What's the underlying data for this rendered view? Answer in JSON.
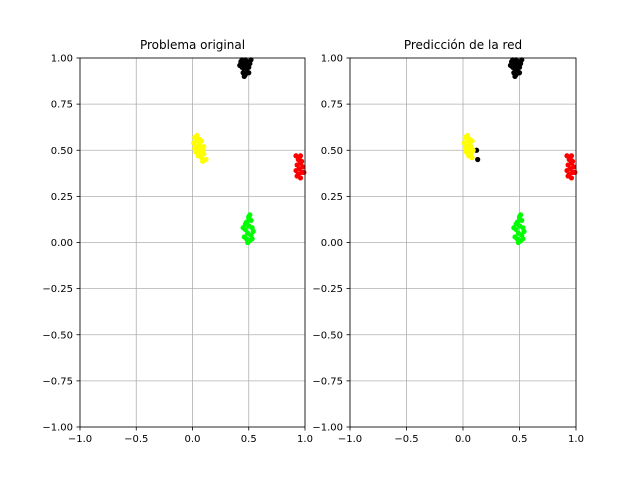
{
  "chart_data": [
    {
      "type": "scatter",
      "title": "Problema original",
      "xlim": [
        -1,
        1
      ],
      "ylim": [
        -1,
        1
      ],
      "xticks": [
        "−1.0",
        "−0.5",
        "0.0",
        "0.5",
        "1.0"
      ],
      "yticks": [
        "−1.00",
        "−0.75",
        "−0.50",
        "−0.25",
        "0.00",
        "0.25",
        "0.50",
        "0.75",
        "1.00"
      ],
      "grid": true,
      "series": [
        {
          "color": "#000000",
          "points": [
            [
              0.43,
              0.98
            ],
            [
              0.45,
              0.97
            ],
            [
              0.47,
              0.99
            ],
            [
              0.49,
              0.96
            ],
            [
              0.46,
              0.94
            ],
            [
              0.44,
              0.95
            ],
            [
              0.48,
              0.93
            ],
            [
              0.5,
              0.95
            ],
            [
              0.45,
              0.92
            ],
            [
              0.47,
              0.91
            ],
            [
              0.49,
              0.98
            ],
            [
              0.51,
              0.97
            ],
            [
              0.44,
              0.99
            ],
            [
              0.46,
              0.96
            ],
            [
              0.48,
              0.97
            ],
            [
              0.5,
              0.92
            ],
            [
              0.46,
              0.9
            ],
            [
              0.42,
              0.96
            ],
            [
              0.52,
              0.99
            ],
            [
              0.47,
              0.95
            ]
          ]
        },
        {
          "color": "#ffff00",
          "points": [
            [
              0.02,
              0.57
            ],
            [
              0.04,
              0.55
            ],
            [
              0.06,
              0.53
            ],
            [
              0.03,
              0.52
            ],
            [
              0.05,
              0.5
            ],
            [
              0.07,
              0.48
            ],
            [
              0.09,
              0.5
            ],
            [
              0.08,
              0.46
            ],
            [
              0.1,
              0.48
            ],
            [
              0.12,
              0.45
            ],
            [
              0.04,
              0.58
            ],
            [
              0.06,
              0.56
            ],
            [
              0.01,
              0.54
            ],
            [
              0.03,
              0.49
            ],
            [
              0.07,
              0.52
            ],
            [
              0.1,
              0.52
            ],
            [
              0.05,
              0.47
            ],
            [
              0.09,
              0.44
            ],
            [
              0.02,
              0.51
            ],
            [
              0.08,
              0.55
            ]
          ]
        },
        {
          "color": "#ff0000",
          "points": [
            [
              0.92,
              0.47
            ],
            [
              0.94,
              0.45
            ],
            [
              0.96,
              0.43
            ],
            [
              0.93,
              0.42
            ],
            [
              0.95,
              0.4
            ],
            [
              0.97,
              0.38
            ],
            [
              0.94,
              0.37
            ],
            [
              0.96,
              0.35
            ],
            [
              0.98,
              0.41
            ],
            [
              0.92,
              0.39
            ],
            [
              0.95,
              0.46
            ],
            [
              0.97,
              0.44
            ],
            [
              0.93,
              0.36
            ],
            [
              0.99,
              0.38
            ],
            [
              0.96,
              0.47
            ]
          ]
        },
        {
          "color": "#00ff00",
          "points": [
            [
              0.5,
              0.14
            ],
            [
              0.52,
              0.12
            ],
            [
              0.48,
              0.11
            ],
            [
              0.5,
              0.09
            ],
            [
              0.53,
              0.08
            ],
            [
              0.47,
              0.07
            ],
            [
              0.49,
              0.05
            ],
            [
              0.52,
              0.04
            ],
            [
              0.48,
              0.02
            ],
            [
              0.51,
              0.01
            ],
            [
              0.46,
              0.03
            ],
            [
              0.54,
              0.06
            ],
            [
              0.5,
              0.13
            ],
            [
              0.47,
              0.1
            ],
            [
              0.53,
              0.02
            ],
            [
              0.49,
              0.0
            ],
            [
              0.51,
              0.15
            ],
            [
              0.45,
              0.08
            ]
          ]
        }
      ]
    },
    {
      "type": "scatter",
      "title": "Predicción de la red",
      "xlim": [
        -1,
        1
      ],
      "ylim": [
        -1,
        1
      ],
      "xticks": [
        "−1.0",
        "−0.5",
        "0.0",
        "0.5",
        "1.0"
      ],
      "yticks": [
        "−1.00",
        "−0.75",
        "−0.50",
        "−0.25",
        "0.00",
        "0.25",
        "0.50",
        "0.75",
        "1.00"
      ],
      "grid": true,
      "series": [
        {
          "color": "#000000",
          "points": [
            [
              0.43,
              0.98
            ],
            [
              0.45,
              0.97
            ],
            [
              0.47,
              0.99
            ],
            [
              0.49,
              0.96
            ],
            [
              0.46,
              0.94
            ],
            [
              0.44,
              0.95
            ],
            [
              0.48,
              0.93
            ],
            [
              0.5,
              0.95
            ],
            [
              0.45,
              0.92
            ],
            [
              0.47,
              0.91
            ],
            [
              0.49,
              0.98
            ],
            [
              0.51,
              0.97
            ],
            [
              0.44,
              0.99
            ],
            [
              0.46,
              0.96
            ],
            [
              0.48,
              0.97
            ],
            [
              0.5,
              0.92
            ],
            [
              0.46,
              0.9
            ],
            [
              0.42,
              0.96
            ],
            [
              0.52,
              0.99
            ],
            [
              0.12,
              0.5
            ],
            [
              0.13,
              0.45
            ]
          ]
        },
        {
          "color": "#ffff00",
          "points": [
            [
              0.02,
              0.57
            ],
            [
              0.04,
              0.55
            ],
            [
              0.06,
              0.53
            ],
            [
              0.03,
              0.52
            ],
            [
              0.05,
              0.5
            ],
            [
              0.07,
              0.48
            ],
            [
              0.09,
              0.5
            ],
            [
              0.08,
              0.46
            ],
            [
              0.04,
              0.58
            ],
            [
              0.06,
              0.56
            ],
            [
              0.01,
              0.54
            ],
            [
              0.03,
              0.49
            ],
            [
              0.07,
              0.52
            ],
            [
              0.05,
              0.47
            ],
            [
              0.02,
              0.51
            ],
            [
              0.08,
              0.55
            ]
          ]
        },
        {
          "color": "#ff0000",
          "points": [
            [
              0.92,
              0.47
            ],
            [
              0.94,
              0.45
            ],
            [
              0.96,
              0.43
            ],
            [
              0.93,
              0.42
            ],
            [
              0.95,
              0.4
            ],
            [
              0.97,
              0.38
            ],
            [
              0.94,
              0.37
            ],
            [
              0.96,
              0.35
            ],
            [
              0.98,
              0.41
            ],
            [
              0.92,
              0.39
            ],
            [
              0.95,
              0.46
            ],
            [
              0.97,
              0.44
            ],
            [
              0.93,
              0.36
            ],
            [
              0.99,
              0.38
            ],
            [
              0.96,
              0.47
            ]
          ]
        },
        {
          "color": "#00ff00",
          "points": [
            [
              0.5,
              0.14
            ],
            [
              0.52,
              0.12
            ],
            [
              0.48,
              0.11
            ],
            [
              0.5,
              0.09
            ],
            [
              0.53,
              0.08
            ],
            [
              0.47,
              0.07
            ],
            [
              0.49,
              0.05
            ],
            [
              0.52,
              0.04
            ],
            [
              0.48,
              0.02
            ],
            [
              0.51,
              0.01
            ],
            [
              0.46,
              0.03
            ],
            [
              0.54,
              0.06
            ],
            [
              0.5,
              0.13
            ],
            [
              0.47,
              0.1
            ],
            [
              0.53,
              0.02
            ],
            [
              0.49,
              0.0
            ],
            [
              0.51,
              0.15
            ],
            [
              0.45,
              0.08
            ]
          ]
        }
      ]
    }
  ]
}
